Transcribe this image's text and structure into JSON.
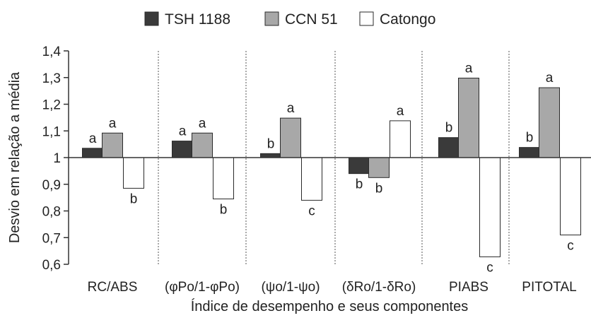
{
  "chart_data": {
    "type": "bar",
    "title": "",
    "xlabel": "Índice de desempenho e seus componentes",
    "ylabel": "Desvio em relação a média",
    "ylim": [
      0.6,
      1.4
    ],
    "yticks": [
      "0,6",
      "0,7",
      "0,8",
      "0,9",
      "1",
      "1,1",
      "1,2",
      "1,3",
      "1,4"
    ],
    "baseline": 1,
    "grid": false,
    "legend_position": "top",
    "categories": [
      "RC/ABS",
      "(φPo/1-φPo)",
      "(ψo/1-ψo)",
      "(δRo/1-δRo)",
      "PIABS",
      "PITOTAL"
    ],
    "series": [
      {
        "name": "TSH 1188",
        "color": "#3a3a3a",
        "values": [
          1.035,
          1.062,
          1.015,
          0.94,
          1.075,
          1.038
        ],
        "labels": [
          "a",
          "a",
          "b",
          "b",
          "b",
          "b"
        ]
      },
      {
        "name": "CCN 51",
        "color": "#a8a8a8",
        "values": [
          1.092,
          1.092,
          1.148,
          0.925,
          1.298,
          1.262
        ],
        "labels": [
          "a",
          "a",
          "a",
          "b",
          "a",
          "a"
        ]
      },
      {
        "name": "Catongo",
        "color": "#ffffff",
        "values": [
          0.885,
          0.845,
          0.84,
          1.138,
          0.628,
          0.71
        ],
        "labels": [
          "b",
          "b",
          "c",
          "a",
          "c",
          "c"
        ]
      }
    ]
  }
}
